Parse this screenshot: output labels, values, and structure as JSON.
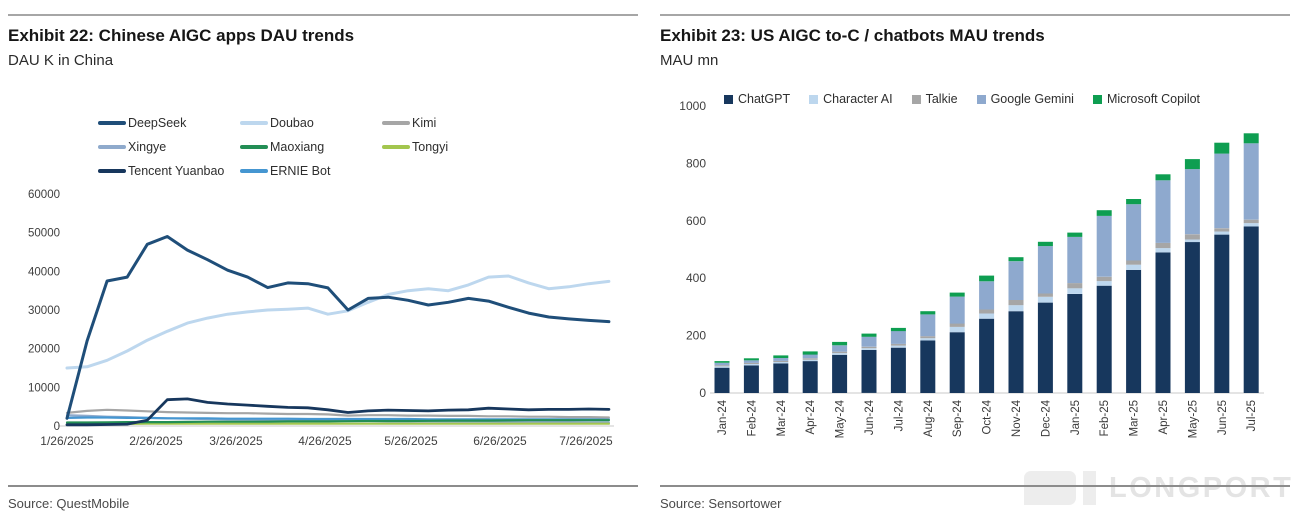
{
  "left_panel": {
    "title": "Exhibit 22: Chinese AIGC apps DAU trends",
    "subtitle": "DAU K in China",
    "source": "Source: QuestMobile"
  },
  "right_panel": {
    "title": "Exhibit 23: US AIGC to-C / chatbots MAU trends",
    "subtitle": "MAU mn",
    "source": "Source: Sensortower"
  },
  "watermark": {
    "text": "LONGPORT"
  },
  "chart_data": [
    {
      "type": "line",
      "title": "Exhibit 22: Chinese AIGC apps DAU trends",
      "ylabel": "DAU K in China",
      "ylim": [
        0,
        60000
      ],
      "y_ticks": [
        0,
        10000,
        20000,
        30000,
        40000,
        50000,
        60000
      ],
      "x_tick_labels": [
        "1/26/2025",
        "2/26/2025",
        "3/26/2025",
        "4/26/2025",
        "5/26/2025",
        "6/26/2025",
        "7/26/2025"
      ],
      "x_start": "1/26/2025",
      "x_interval": "weekly",
      "grid": false,
      "legend_position": "top-left",
      "series": [
        {
          "name": "DeepSeek",
          "color": "#1f4e79",
          "values": [
            2000,
            22000,
            37500,
            38500,
            47000,
            49000,
            45500,
            43000,
            40300,
            38500,
            35800,
            37000,
            36800,
            35700,
            30000,
            33000,
            33300,
            32500,
            31300,
            32000,
            33000,
            32300,
            30700,
            29200,
            28200,
            27700,
            27300,
            27000
          ]
        },
        {
          "name": "Doubao",
          "color": "#bdd7ee",
          "values": [
            15000,
            15300,
            17000,
            19400,
            22200,
            24500,
            26600,
            27900,
            28900,
            29500,
            30000,
            30200,
            30500,
            28900,
            29800,
            32000,
            34000,
            35000,
            35500,
            35000,
            36500,
            38500,
            38800,
            37000,
            35500,
            36000,
            36800,
            37400
          ]
        },
        {
          "name": "Kimi",
          "color": "#a6a6a6",
          "values": [
            3400,
            3900,
            4200,
            4000,
            3800,
            3600,
            3500,
            3400,
            3300,
            3300,
            3200,
            3100,
            3100,
            3000,
            2700,
            2800,
            2800,
            2700,
            2700,
            2600,
            2600,
            2500,
            2500,
            2400,
            2400,
            2300,
            2300,
            2200
          ]
        },
        {
          "name": "Xingye",
          "color": "#8faacc",
          "values": [
            2800,
            2600,
            2400,
            2300,
            2100,
            2000,
            1900,
            1800,
            1700,
            1600,
            1500,
            1500,
            1400,
            1400,
            1300,
            1300,
            1200,
            1200,
            1200,
            1100,
            1100,
            1100,
            1000,
            1000,
            1000,
            1000,
            900,
            900
          ]
        },
        {
          "name": "Maoxiang",
          "color": "#238e55",
          "values": [
            900,
            900,
            950,
            1000,
            1000,
            1000,
            1050,
            1100,
            1100,
            1100,
            1150,
            1200,
            1200,
            1200,
            1250,
            1300,
            1300,
            1300,
            1350,
            1400,
            1400,
            1400,
            1450,
            1500,
            1500,
            1500,
            1500,
            1500
          ]
        },
        {
          "name": "Tongyi",
          "color": "#a3c64e",
          "values": [
            500,
            500,
            550,
            550,
            600,
            600,
            600,
            600,
            600,
            600,
            600,
            600,
            600,
            600,
            600,
            600,
            600,
            600,
            600,
            600,
            600,
            600,
            600,
            600,
            600,
            600,
            600,
            600
          ]
        },
        {
          "name": "Tencent Yuanbao",
          "color": "#17375d",
          "values": [
            300,
            300,
            400,
            500,
            1500,
            6800,
            7000,
            6100,
            5700,
            5400,
            5100,
            4800,
            4700,
            4200,
            3500,
            3900,
            4100,
            4000,
            3900,
            4100,
            4200,
            4600,
            4400,
            4200,
            4300,
            4300,
            4400,
            4300
          ]
        },
        {
          "name": "ERNIE Bot",
          "color": "#4596d1",
          "values": [
            2100,
            2200,
            2200,
            2100,
            2100,
            2000,
            2000,
            2000,
            1900,
            1900,
            1900,
            1900,
            1800,
            1800,
            1800,
            1800,
            1800,
            1800,
            1700,
            1700,
            1700,
            1700,
            1700,
            1700,
            1700,
            1700,
            1700,
            1700
          ]
        }
      ]
    },
    {
      "type": "bar",
      "stacked": true,
      "title": "Exhibit 23: US AIGC to-C / chatbots MAU trends",
      "ylabel": "MAU mn",
      "ylim": [
        0,
        1000
      ],
      "y_ticks": [
        0,
        200,
        400,
        600,
        800,
        1000
      ],
      "grid": false,
      "legend_position": "top",
      "categories": [
        "Jan-24",
        "Feb-24",
        "Mar-24",
        "Apr-24",
        "May-24",
        "Jun-24",
        "Jul-24",
        "Aug-24",
        "Sep-24",
        "Oct-24",
        "Nov-24",
        "Dec-24",
        "Jan-25",
        "Feb-25",
        "Mar-25",
        "Apr-25",
        "May-25",
        "Jun-25",
        "Jul-25"
      ],
      "series": [
        {
          "name": "ChatGPT",
          "color": "#17375d",
          "values": [
            88,
            96,
            103,
            111,
            133,
            150,
            158,
            183,
            212,
            259,
            285,
            315,
            345,
            374,
            429,
            490,
            526,
            552,
            580
          ]
        },
        {
          "name": "Character AI",
          "color": "#bdd7ee",
          "values": [
            5,
            5,
            5,
            5,
            6,
            6,
            7,
            8,
            18,
            18,
            21,
            20,
            20,
            16,
            18,
            15,
            9,
            11,
            12
          ]
        },
        {
          "name": "Talkie",
          "color": "#a6a6a6",
          "values": [
            4,
            4,
            4,
            5,
            5,
            5,
            6,
            7,
            12,
            14,
            18,
            12,
            18,
            15,
            15,
            18,
            18,
            11,
            12
          ]
        },
        {
          "name": "Google Gemini",
          "color": "#8ea9ce",
          "values": [
            8,
            9,
            10,
            13,
            22,
            35,
            45,
            76,
            94,
            98,
            135,
            165,
            161,
            212,
            196,
            218,
            227,
            260,
            266
          ]
        },
        {
          "name": "Microsoft Copilot",
          "color": "#0e9e51",
          "values": [
            6,
            7,
            9,
            11,
            12,
            11,
            11,
            11,
            14,
            20,
            14,
            15,
            15,
            20,
            18,
            21,
            35,
            38,
            35
          ]
        }
      ]
    }
  ]
}
